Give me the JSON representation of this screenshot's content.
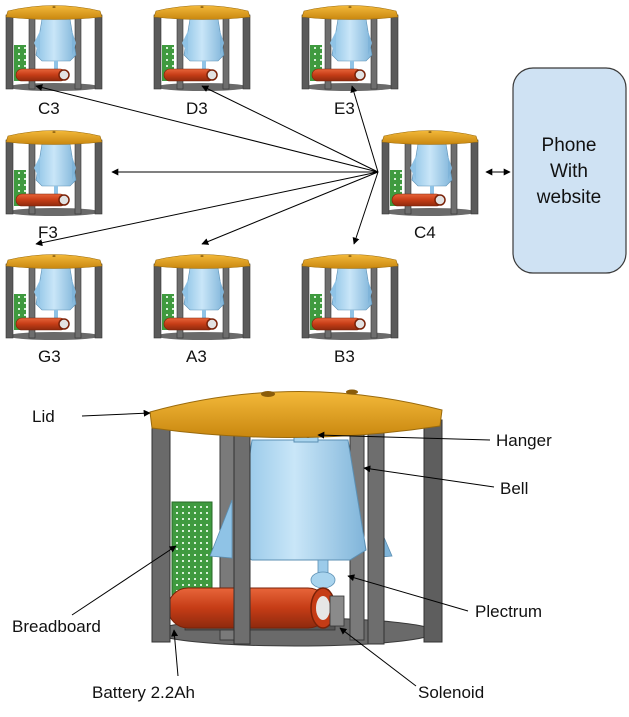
{
  "nodes": [
    {
      "id": "c3",
      "label": "C3"
    },
    {
      "id": "d3",
      "label": "D3"
    },
    {
      "id": "e3",
      "label": "E3"
    },
    {
      "id": "f3",
      "label": "F3"
    },
    {
      "id": "c4",
      "label": "C4"
    },
    {
      "id": "g3",
      "label": "G3"
    },
    {
      "id": "a3",
      "label": "A3"
    },
    {
      "id": "b3",
      "label": "B3"
    }
  ],
  "phone": {
    "line1": "Phone",
    "line2": "With",
    "line3": "website"
  },
  "parts": {
    "lid": "Lid",
    "hanger": "Hanger",
    "bell": "Bell",
    "breadboard": "Breadboard",
    "plectrum": "Plectrum",
    "battery": "Battery 2.2Ah",
    "solenoid": "Solenoid"
  },
  "colors": {
    "lid": "#e8a21c",
    "frame": "#5c5c5c",
    "bell": "#a9d4ee",
    "battery": "#d4481e",
    "breadboard": "#4cae4c",
    "phone_fill": "#cfe2f3"
  }
}
